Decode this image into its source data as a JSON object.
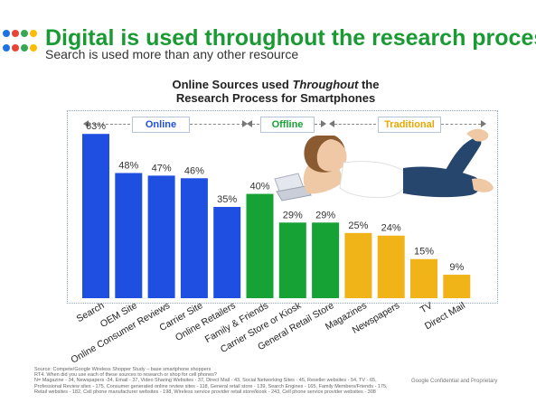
{
  "header": {
    "title": "Digital is used throughout the research process",
    "subtitle": "Search is used more than any other resource",
    "dot_colors": [
      "#1a73e8",
      "#ea4335",
      "#34a853",
      "#fbbc05",
      "#1a73e8",
      "#ea4335",
      "#34a853",
      "#fbbc05"
    ]
  },
  "chart_data": {
    "type": "bar",
    "title_line1": "Online Sources used ",
    "title_emph": "Throughout",
    "title_after": " the",
    "title_line2": "Research Process for Smartphones",
    "ylim": [
      0,
      70
    ],
    "sections": [
      {
        "label": "Online",
        "color": "#1f4fe0",
        "text_color": "#1f4fe0"
      },
      {
        "label": "Offline",
        "color": "#17a235",
        "text_color": "#17a235"
      },
      {
        "label": "Traditional",
        "color": "#f0b419",
        "text_color": "#e8a800"
      }
    ],
    "categories": [
      "Search",
      "OEM Site",
      "Online Consumer Reviews",
      "Carrier Site",
      "Online Retailers",
      "Family & Friends",
      "Carrier Store or Kiosk",
      "General Retail Store",
      "Magazines",
      "Newspapers",
      "TV",
      "Direct Mail"
    ],
    "values": [
      63,
      48,
      47,
      46,
      35,
      40,
      29,
      29,
      25,
      24,
      15,
      9
    ],
    "value_labels": [
      "63%",
      "48%",
      "47%",
      "46%",
      "35%",
      "40%",
      "29%",
      "29%",
      "25%",
      "24%",
      "15%",
      "9%"
    ],
    "bar_section": [
      0,
      0,
      0,
      0,
      0,
      1,
      1,
      1,
      2,
      2,
      2,
      2
    ]
  },
  "footer": {
    "source": "Source: Compete/Google Wireless Shopper Study – base smartphone shoppers",
    "question": "RT4. When did you use each of these sources to research or shop for cell phones?",
    "base": "N= Magazine - 34, Newspapers -34, Email - 37, Video Sharing Websites - 37, Direct Mail - 43, Social Networking Sites - 45, Reseller websites - 54, TV - 65, Professional Review sites - 175, Consumer generated online review sites - 118, General retail store - 139, Search Engines - 165, Family Members/Friends - 175, Retail websites - 182, Cell phone manufacturer websites - 198, Wireless service provider retail store/kiosk - 243, Cell phone service provider websites - 308",
    "confidential": "Google Confidential and Proprietary"
  }
}
